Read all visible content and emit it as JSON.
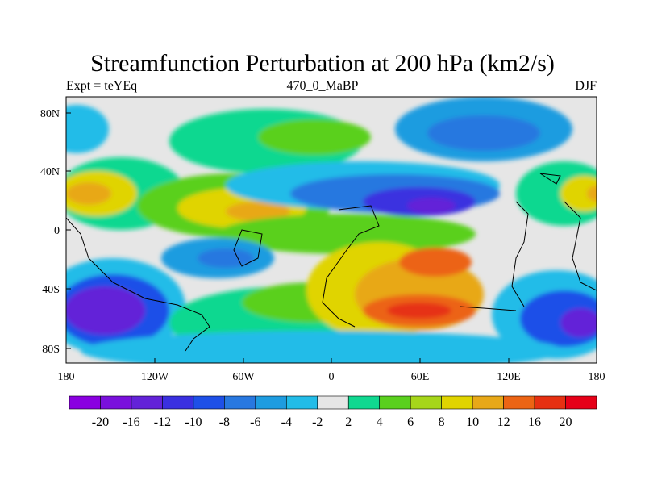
{
  "title": "Streamfunction Perturbation at 200 hPa (km2/s)",
  "left_string": "Expt = teYEq",
  "center_string": "470_0_MaBP",
  "right_string": "DJF",
  "lat_ticks": [
    "80N",
    "40N",
    "0",
    "40S",
    "80S"
  ],
  "lon_ticks": [
    "180",
    "120W",
    "60W",
    "0",
    "60E",
    "120E",
    "180"
  ],
  "colorbar": {
    "labels": [
      "-20",
      "-16",
      "-12",
      "-10",
      "-8",
      "-6",
      "-4",
      "-2",
      "2",
      "4",
      "6",
      "8",
      "10",
      "12",
      "16",
      "20"
    ],
    "colors": [
      "#8a00e0",
      "#7a10dc",
      "#6322d8",
      "#3a30e0",
      "#1e50e8",
      "#2878e0",
      "#1e9ce0",
      "#22bce8",
      "#e6e6e6",
      "#10d890",
      "#5ad01e",
      "#a6d61a",
      "#e0d400",
      "#e8a818",
      "#ec6414",
      "#e63012",
      "#e60018"
    ]
  },
  "fields": {
    "land": "#e6e6e6"
  }
}
